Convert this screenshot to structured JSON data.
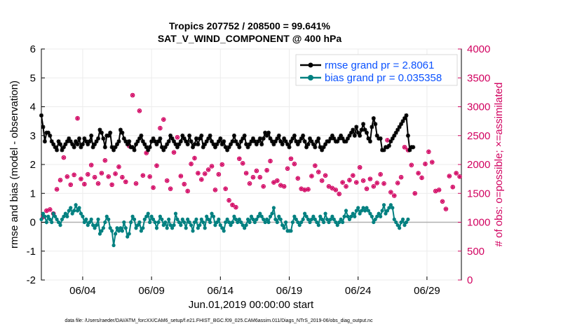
{
  "chart_data": {
    "type": "line",
    "title_line1": "Tropics 207752 / 208500 = 99.641%",
    "title_line2": "SAT_V_WIND_COMPONENT @ 400 hPa",
    "xlabel": "Jun.01,2019 00:00:00 start",
    "ylabel": "rmse and bias (model - observation)",
    "ylabel_right": "# of obs: o=possible; ×=assimilated",
    "ylim": [
      -2,
      6
    ],
    "ylim_right": [
      0,
      4000
    ],
    "yticks": [
      "-2",
      "-1",
      "0",
      "1",
      "2",
      "3",
      "4",
      "5",
      "6"
    ],
    "yticks_right": [
      "0",
      "500",
      "1000",
      "1500",
      "2000",
      "2500",
      "3000",
      "3500",
      "4000"
    ],
    "x_range_days": [
      0,
      30.5
    ],
    "xtick_labels": [
      "06/04",
      "06/09",
      "06/14",
      "06/19",
      "06/24",
      "06/29"
    ],
    "xtick_days": [
      3,
      8,
      13,
      18,
      23,
      28
    ],
    "footnote": "data file: /Users/raeder/DAI/ATM_forcXX/CAM6_setup/f.e21.FHIST_BGC.f09_025.CAM6assim.011/Diags_NTrS_2019-06/obs_diag_output.nc",
    "colors": {
      "rmse": "#000000",
      "bias": "#008080",
      "obs": "#d1005f",
      "legend_text": "#0b52ff",
      "zero_line": "#b0b0b0"
    },
    "series": [
      {
        "name": "rmse grand pr = 2.8061",
        "key": "rmse",
        "step_hours": 3,
        "values": [
          3.7,
          3.3,
          2.8,
          3.1,
          3.1,
          3.0,
          2.8,
          2.7,
          2.6,
          2.5,
          2.8,
          2.7,
          2.5,
          2.6,
          2.7,
          2.8,
          2.9,
          2.8,
          2.7,
          2.6,
          2.8,
          2.7,
          2.9,
          2.6,
          2.7,
          2.9,
          2.8,
          2.7,
          2.8,
          3.0,
          2.6,
          2.7,
          2.8,
          2.9,
          3.2,
          3.1,
          2.9,
          2.6,
          3.0,
          3.0,
          3.1,
          2.6,
          2.5,
          2.6,
          2.7,
          2.8,
          3.2,
          3.1,
          2.9,
          2.8,
          2.7,
          2.8,
          2.6,
          2.6,
          2.5,
          2.7,
          2.8,
          2.9,
          3.0,
          2.8,
          2.7,
          2.6,
          2.5,
          2.6,
          2.8,
          2.9,
          2.8,
          2.7,
          2.8,
          2.9,
          2.6,
          2.5,
          2.6,
          2.7,
          2.8,
          3.0,
          2.9,
          2.8,
          2.7,
          2.6,
          2.7,
          2.8,
          3.0,
          2.9,
          2.8,
          2.7,
          3.0,
          2.8,
          2.6,
          2.7,
          2.9,
          2.7,
          2.9,
          3.0,
          2.6,
          2.7,
          2.8,
          2.9,
          3.0,
          2.8,
          2.7,
          2.6,
          2.7,
          2.8,
          2.9,
          2.7,
          2.8,
          2.6,
          2.5,
          2.6,
          2.7,
          2.8,
          3.0,
          2.8,
          2.7,
          2.6,
          2.8,
          2.9,
          3.0,
          2.7,
          2.6,
          2.7,
          2.8,
          2.9,
          2.8,
          2.7,
          2.8,
          2.9,
          2.7,
          2.9,
          3.1,
          3.0,
          3.1,
          2.9,
          2.8,
          2.7,
          2.8,
          2.9,
          3.0,
          2.8,
          2.7,
          2.9,
          2.8,
          2.7,
          2.6,
          2.8,
          2.9,
          3.0,
          2.8,
          2.7,
          2.8,
          2.9,
          3.0,
          2.8,
          2.6,
          2.7,
          2.9,
          2.8,
          2.7,
          2.6,
          2.8,
          2.9,
          2.6,
          2.5,
          2.6,
          2.7,
          2.8,
          2.8,
          2.9,
          3.0,
          2.9,
          2.8,
          2.8,
          2.9,
          3.0,
          2.9,
          2.8,
          2.8,
          2.9,
          3.0,
          3.1,
          3.2,
          3.0,
          3.3,
          3.1,
          3.0,
          3.2,
          3.4,
          3.2,
          3.1,
          2.9,
          2.8,
          3.3,
          3.6,
          3.4,
          3.0,
          2.9,
          2.9,
          2.5,
          2.5,
          2.6,
          2.6,
          2.65,
          2.8,
          2.9,
          3.0,
          3.1,
          3.2,
          3.3,
          3.4,
          3.5,
          3.6,
          3.7,
          3.0,
          2.5,
          2.6,
          2.6
        ]
      },
      {
        "name": "bias grand pr = 0.035358",
        "key": "bias",
        "step_hours": 3,
        "values": [
          0.1,
          0.3,
          0.2,
          0.0,
          0.2,
          0.1,
          0.0,
          0.3,
          0.2,
          0.1,
          0.0,
          -0.1,
          0.1,
          0.2,
          0.3,
          0.2,
          0.4,
          0.5,
          0.3,
          0.4,
          0.6,
          0.4,
          0.5,
          0.3,
          0.2,
          0.0,
          0.1,
          -0.1,
          0.0,
          0.1,
          -0.1,
          -0.2,
          -0.1,
          0.1,
          -0.4,
          -0.3,
          -0.2,
          0.0,
          0.2,
          0.1,
          -0.2,
          -0.3,
          -0.8,
          -0.4,
          -0.2,
          -0.3,
          -0.2,
          -0.3,
          0.0,
          -0.2,
          -0.5,
          -0.4,
          0.0,
          0.2,
          0.1,
          -0.2,
          -0.1,
          0.0,
          -0.3,
          -0.2,
          0.1,
          0.2,
          0.3,
          0.0,
          0.2,
          0.1,
          0.0,
          -0.2,
          0.0,
          0.2,
          0.1,
          -0.1,
          0.0,
          -0.2,
          0.1,
          -0.1,
          -0.2,
          -0.1,
          0.3,
          0.1,
          0.0,
          -0.1,
          0.1,
          0.0,
          -0.2,
          0.1,
          0.0,
          -0.1,
          -0.3,
          0.0,
          0.1,
          -0.2,
          -0.1,
          0.1,
          0.0,
          -0.2,
          0.2,
          0.1,
          0.0,
          0.3,
          0.2,
          -0.1,
          0.0,
          0.1,
          -0.1,
          -0.2,
          -0.3,
          0.0,
          0.1,
          0.0,
          -0.1,
          0.0,
          0.2,
          0.1,
          0.0,
          0.1,
          0.0,
          -0.1,
          -0.2,
          -0.1,
          0.1,
          0.0,
          0.2,
          0.1,
          0.0,
          0.1,
          0.2,
          0.3,
          0.2,
          0.1,
          0.0,
          0.1,
          0.0,
          0.2,
          0.3,
          0.5,
          0.1,
          0.0,
          0.2,
          0.1,
          -0.1,
          -0.2,
          0.0,
          -0.3,
          -0.3,
          -0.3,
          0.0,
          0.2,
          0.1,
          0.0,
          -0.1,
          0.0,
          0.1,
          0.3,
          0.2,
          0.1,
          0.0,
          0.1,
          0.2,
          0.1,
          0.0,
          -0.1,
          0.2,
          0.1,
          0.0,
          0.3,
          0.1,
          0.0,
          0.1,
          0.2,
          0.1,
          0.0,
          -0.1,
          0.0,
          0.1,
          0.0,
          0.2,
          0.4,
          0.2,
          0.1,
          0.2,
          0.3,
          0.2,
          0.4,
          0.5,
          0.3,
          0.4,
          0.5,
          0.4,
          0.5,
          0.4,
          0.3,
          0.2,
          0.0,
          0.1,
          0.2,
          0.3,
          0.2,
          0.4,
          0.6,
          0.3,
          0.4,
          0.5,
          0.6,
          0.5,
          0.1,
          0.0,
          -0.1,
          -0.2,
          0.0,
          0.1,
          -0.1,
          0.0,
          0.1
        ]
      },
      {
        "name": "obs count (possible / assimilated)",
        "key": "obs",
        "step_hours": 6,
        "values": [
          1090,
          1200,
          1220,
          1150,
          1570,
          1730,
          2120,
          1790,
          1650,
          1820,
          2800,
          1750,
          1660,
          1830,
          1990,
          1780,
          1670,
          1850,
          2070,
          1790,
          1650,
          1840,
          1960,
          1780,
          1700,
          2320,
          3200,
          1670,
          2930,
          1810,
          2200,
          1790,
          1600,
          1980,
          2630,
          2780,
          1720,
          1580,
          2210,
          2470,
          1800,
          1660,
          1540,
          2010,
          2110,
          1850,
          1740,
          1840,
          1910,
          1970,
          1560,
          1830,
          2000,
          1580,
          1380,
          1300,
          1260,
          2100,
          2020,
          1850,
          1670,
          1780,
          1890,
          1780,
          1620,
          1900,
          2060,
          1690,
          1720,
          1640,
          1620,
          1930,
          2100,
          2010,
          1760,
          1580,
          1560,
          1570,
          1800,
          1980,
          1870,
          1720,
          1810,
          1620,
          1590,
          1560,
          1490,
          1690,
          1620,
          1730,
          1810,
          1690,
          1950,
          1720,
          1580,
          1750,
          1620,
          1680,
          1830,
          1670,
          2420,
          1520,
          1460,
          1680,
          1780,
          2300,
          2250,
          1990,
          1500,
          1850,
          1770,
          2010,
          2220,
          2040,
          1540,
          1560,
          1360,
          1230,
          1800,
          1610,
          1850,
          1790,
          1540,
          1480,
          1380,
          1500,
          2150,
          1760,
          1920,
          1960,
          1700,
          1600,
          1540,
          1450,
          1660,
          1810,
          1650,
          1500,
          1820,
          1730,
          1370,
          1560,
          1610,
          1540,
          1480,
          1720,
          1560,
          1950,
          1690,
          1520,
          1420,
          1660,
          1580,
          1650,
          1450,
          1760,
          1530,
          1810,
          1590,
          1670,
          1830,
          1760,
          1880,
          1720,
          1630,
          1380,
          1540,
          1760,
          1720,
          1680,
          1630,
          1830,
          1970,
          1890,
          1720,
          1620,
          1580,
          1720,
          2070,
          1700,
          1580,
          1760,
          1810,
          2290,
          2420,
          2500,
          2720,
          2580,
          1780,
          1920,
          1600,
          1940,
          1540,
          1740,
          2250,
          1800,
          1630,
          1350,
          1140,
          1630,
          1860,
          2200,
          1880,
          1630,
          1300,
          1560,
          2040,
          1790,
          1670,
          1530,
          1670,
          1840,
          1720,
          1570,
          1460,
          1520,
          1440,
          1710,
          1880,
          1560,
          1900,
          1680,
          1470,
          1570,
          1950,
          1660,
          1730,
          1760,
          1720,
          1490,
          1590,
          1550,
          0
        ]
      }
    ]
  },
  "legend": {
    "rmse_label": "rmse grand pr = 2.8061",
    "bias_label": "bias grand pr = 0.035358"
  }
}
